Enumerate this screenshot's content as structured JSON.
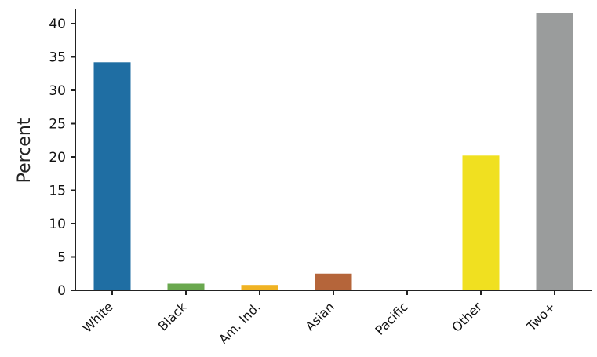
{
  "chart_data": {
    "type": "bar",
    "title": "",
    "xlabel": "",
    "ylabel": "Percent",
    "categories": [
      "White",
      "Black",
      "Am. Ind.",
      "Asian",
      "Pacific",
      "Other",
      "Two+"
    ],
    "values": [
      34.2,
      1.0,
      0.8,
      2.5,
      0.0,
      20.2,
      41.6
    ],
    "colors": [
      "#1f6ea3",
      "#6aa84f",
      "#f0b323",
      "#b5653a",
      "#8e7cc3",
      "#f0e020",
      "#9a9c9c"
    ],
    "ylim": [
      0,
      42
    ],
    "yticks": [
      0,
      5,
      10,
      15,
      20,
      25,
      30,
      35,
      40
    ],
    "grid": false,
    "legend": "none"
  }
}
